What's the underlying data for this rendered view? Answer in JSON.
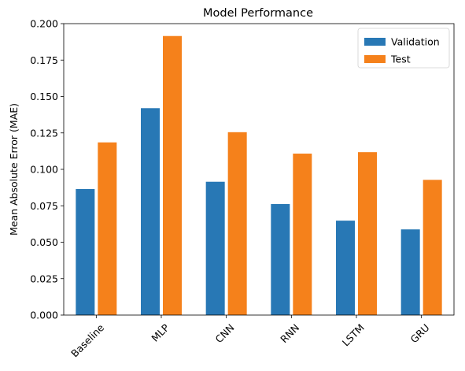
{
  "chart_data": {
    "type": "bar",
    "title": "Model Performance",
    "xlabel": "",
    "ylabel": "Mean Absolute Error (MAE)",
    "categories": [
      "Baseline",
      "MLP",
      "CNN",
      "RNN",
      "LSTM",
      "GRU"
    ],
    "series": [
      {
        "name": "Validation",
        "color": "#2878b5",
        "values": [
          0.0865,
          0.142,
          0.0915,
          0.0762,
          0.0648,
          0.0588
        ]
      },
      {
        "name": "Test",
        "color": "#f5811b",
        "values": [
          0.1185,
          0.1915,
          0.1255,
          0.1108,
          0.1118,
          0.0928
        ]
      }
    ],
    "ylim": [
      0,
      0.2
    ],
    "yticks": [
      "0.000",
      "0.025",
      "0.050",
      "0.075",
      "0.100",
      "0.125",
      "0.150",
      "0.175",
      "0.200"
    ],
    "grid": false,
    "legend_position": "top-right"
  }
}
